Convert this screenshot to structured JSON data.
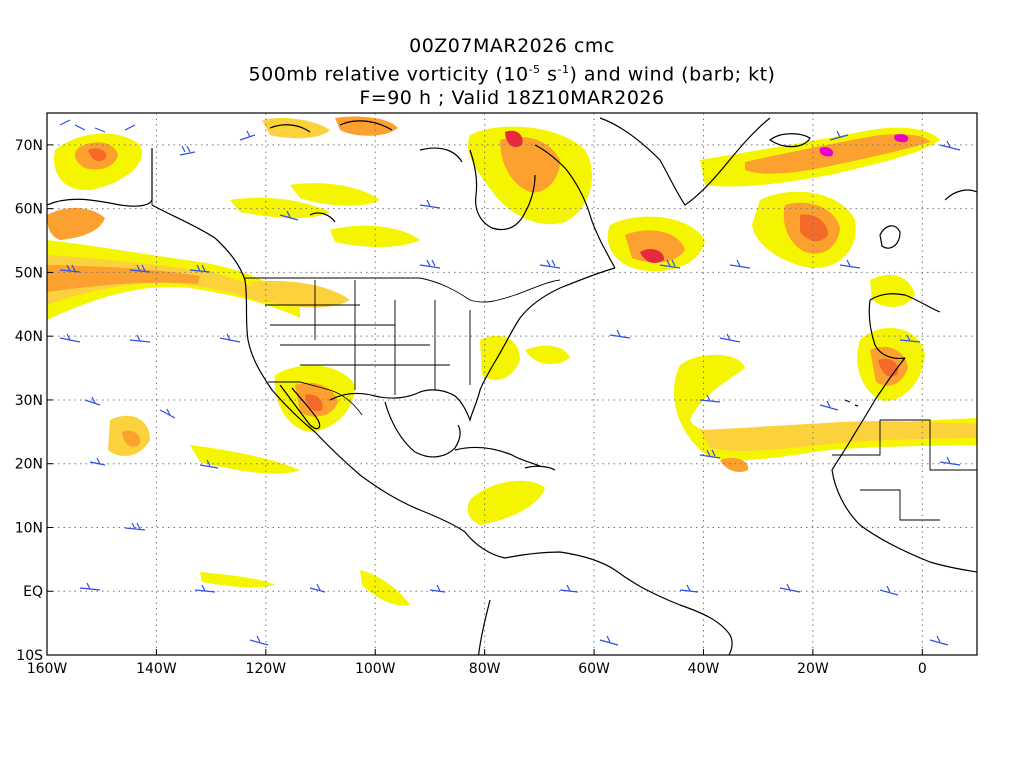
{
  "title": {
    "line1": "00Z07MAR2026 cmc",
    "line2_pre": "500mb relative vorticity (10",
    "line2_exp1": "-5",
    "line2_mid": " s",
    "line2_exp2": "-1",
    "line2_post": ") and wind (barb; kt)",
    "line3": "F=90 h ; Valid 18Z10MAR2026"
  },
  "map": {
    "lon_range": [
      -160,
      10
    ],
    "lat_range": [
      -10,
      75
    ],
    "lon_ticks": [
      {
        "value": -160,
        "label": "160W"
      },
      {
        "value": -140,
        "label": "140W"
      },
      {
        "value": -120,
        "label": "120W"
      },
      {
        "value": -100,
        "label": "100W"
      },
      {
        "value": -80,
        "label": "80W"
      },
      {
        "value": -60,
        "label": "60W"
      },
      {
        "value": -40,
        "label": "40W"
      },
      {
        "value": -20,
        "label": "20W"
      },
      {
        "value": 0,
        "label": "0"
      }
    ],
    "lat_ticks": [
      {
        "value": 70,
        "label": "70N"
      },
      {
        "value": 60,
        "label": "60N"
      },
      {
        "value": 50,
        "label": "50N"
      },
      {
        "value": 40,
        "label": "40N"
      },
      {
        "value": 30,
        "label": "30N"
      },
      {
        "value": 20,
        "label": "20N"
      },
      {
        "value": 10,
        "label": "10N"
      },
      {
        "value": 0,
        "label": "EQ"
      },
      {
        "value": -10,
        "label": "10S"
      }
    ],
    "grid": "dotted",
    "colors": {
      "vort_1": "#f5f500",
      "vort_2": "#fcd23c",
      "vort_3": "#fca030",
      "vort_4": "#f56a28",
      "vort_5": "#e8283c",
      "vort_6": "#e400c8",
      "barb": "#3050e0",
      "coast": "#000000"
    }
  }
}
